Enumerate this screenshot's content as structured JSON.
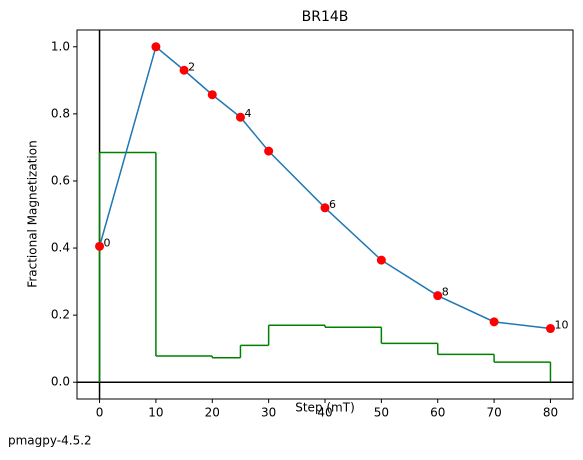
{
  "chart_data": {
    "type": "demag",
    "title": "BR14B",
    "x_label": "Step (mT)",
    "y_label": "Fractional Magnetization",
    "footer": "pmagpy-4.5.2",
    "x": [
      0,
      10,
      15,
      20,
      25,
      30,
      40,
      50,
      60,
      70,
      80
    ],
    "series": [
      {
        "color": "#1f77b4",
        "marker_color": "#ff0000",
        "values": [
          0.405,
          1.0,
          0.93,
          0.857,
          0.79,
          0.689,
          0.52,
          0.364,
          0.258,
          0.18,
          0.16
        ],
        "point_labels": [
          "0",
          null,
          "2",
          null,
          "4",
          null,
          "6",
          null,
          "8",
          null,
          "10"
        ]
      }
    ],
    "steps": {
      "color": "#008000",
      "edges": [
        0,
        10,
        20,
        25,
        30,
        40,
        50,
        60,
        70,
        80
      ],
      "values": [
        0.685,
        0.078,
        0.073,
        0.11,
        0.17,
        0.164,
        0.116,
        0.083,
        0.06
      ]
    },
    "hline": 0,
    "vline": 0,
    "xlim": [
      -4,
      84
    ],
    "ylim": [
      -0.05,
      1.05
    ],
    "xticks": [
      0,
      10,
      20,
      30,
      40,
      50,
      60,
      70,
      80
    ],
    "yticks": [
      {
        "value": 0,
        "label": "0.0"
      },
      0.2,
      0.4,
      0.6,
      0.8,
      {
        "value": 1,
        "label": "1.0"
      }
    ]
  }
}
